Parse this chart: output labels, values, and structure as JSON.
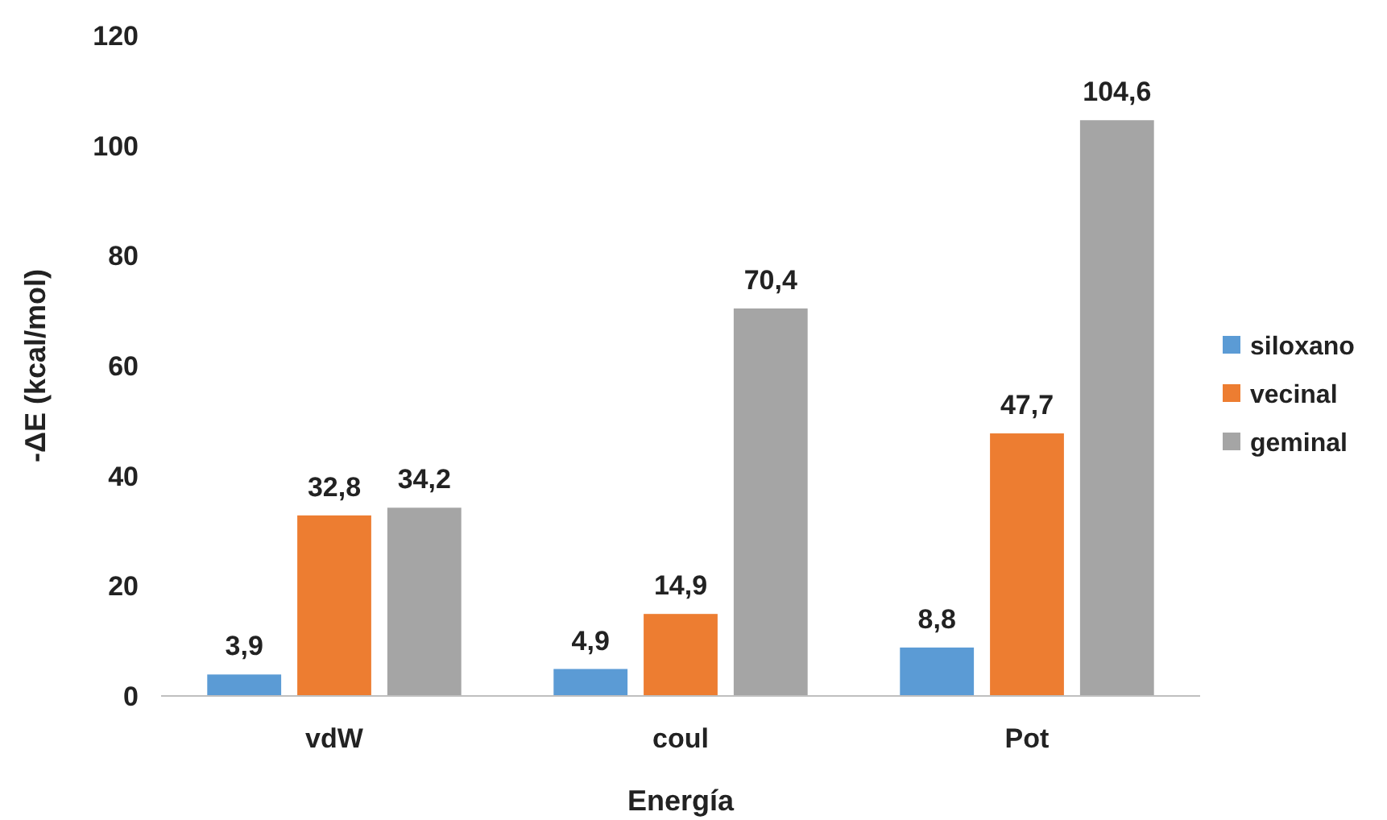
{
  "chart_data": {
    "type": "bar",
    "xlabel": "Energía",
    "ylabel": "-ΔE (kcal/mol)",
    "categories": [
      "vdW",
      "coul",
      "Pot"
    ],
    "series": [
      {
        "name": "siloxano",
        "color": "#5b9bd5",
        "values": [
          3.9,
          4.9,
          8.8
        ],
        "value_labels": [
          "3,9",
          "4,9",
          "8,8"
        ]
      },
      {
        "name": "vecinal",
        "color": "#ed7d31",
        "values": [
          32.8,
          14.9,
          47.7
        ],
        "value_labels": [
          "32,8",
          "14,9",
          "47,7"
        ]
      },
      {
        "name": "geminal",
        "color": "#a5a5a5",
        "values": [
          34.2,
          70.4,
          104.6
        ],
        "value_labels": [
          "34,2",
          "70,4",
          "104,6"
        ]
      }
    ],
    "ylim": [
      0,
      120
    ],
    "yticks": [
      0,
      20,
      40,
      60,
      80,
      100,
      120
    ],
    "grid": false,
    "legend": "right"
  }
}
